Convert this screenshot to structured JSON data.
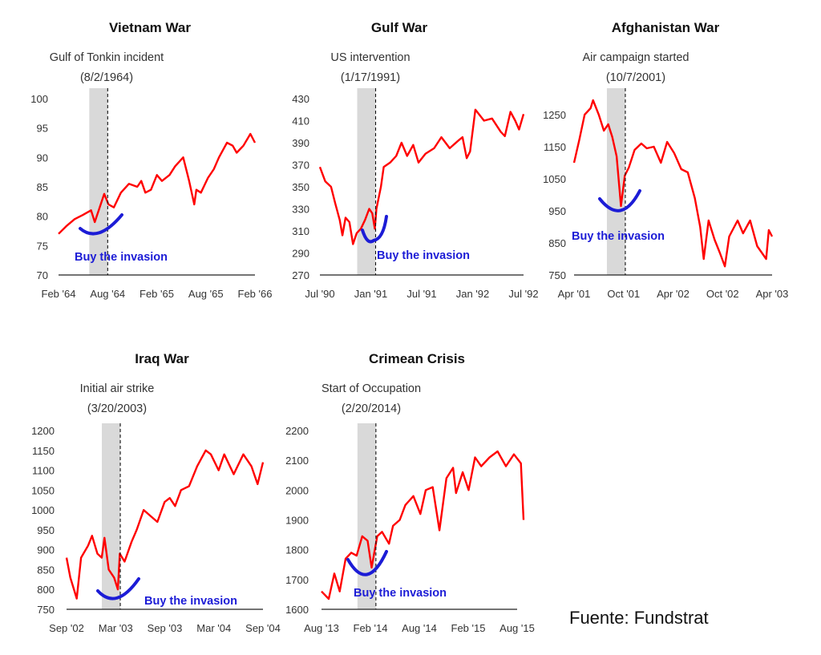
{
  "source": "Fuente: Fundstrat",
  "colors": {
    "series": "#ff0000",
    "highlight": "#1c1cd6",
    "shade": "#d9d9d9"
  },
  "chart_data": [
    {
      "type": "line",
      "title": "Vietnam War",
      "event_label": "Gulf of Tonkin incident",
      "event_date_label": "(8/2/1964)",
      "event_date": "1964-08-02",
      "callout": "Buy the invasion",
      "x_range": [
        "1964-02-01",
        "1966-02-01"
      ],
      "x_ticks": [
        "Feb '64",
        "Aug '64",
        "Feb '65",
        "Aug '65",
        "Feb '66"
      ],
      "y_ticks": [
        70,
        75,
        80,
        85,
        90,
        95,
        100
      ],
      "ylim": [
        70,
        100
      ],
      "series": [
        {
          "points": [
            [
              "1964-02-01",
              77
            ],
            [
              "1964-03-01",
              78.3
            ],
            [
              "1964-04-01",
              79.5
            ],
            [
              "1964-05-01",
              80.2
            ],
            [
              "1964-06-01",
              81
            ],
            [
              "1964-06-15",
              79
            ],
            [
              "1964-07-20",
              83.8
            ],
            [
              "1964-08-05",
              82
            ],
            [
              "1964-08-25",
              81.5
            ],
            [
              "1964-09-20",
              84
            ],
            [
              "1964-10-20",
              85.5
            ],
            [
              "1964-11-20",
              85
            ],
            [
              "1964-12-05",
              86
            ],
            [
              "1964-12-20",
              84
            ],
            [
              "1965-01-10",
              84.5
            ],
            [
              "1965-02-01",
              87
            ],
            [
              "1965-02-20",
              86
            ],
            [
              "1965-03-20",
              87
            ],
            [
              "1965-04-10",
              88.5
            ],
            [
              "1965-05-10",
              90
            ],
            [
              "1965-06-01",
              86
            ],
            [
              "1965-06-20",
              82
            ],
            [
              "1965-06-28",
              84.5
            ],
            [
              "1965-07-15",
              84
            ],
            [
              "1965-08-10",
              86.5
            ],
            [
              "1965-09-01",
              88
            ],
            [
              "1965-09-20",
              90
            ],
            [
              "1965-10-20",
              92.5
            ],
            [
              "1965-11-10",
              92
            ],
            [
              "1965-11-25",
              90.8
            ],
            [
              "1965-12-20",
              92
            ],
            [
              "1966-01-15",
              94
            ],
            [
              "1966-02-01",
              92.5
            ]
          ]
        }
      ]
    },
    {
      "type": "line",
      "title": "Gulf War",
      "event_label": "US intervention",
      "event_date_label": "(1/17/1991)",
      "event_date": "1991-01-17",
      "callout": "Buy the invasion",
      "x_range": [
        "1990-07-01",
        "1992-07-01"
      ],
      "x_ticks": [
        "Jul '90",
        "Jan '91",
        "Jul '91",
        "Jan '92",
        "Jul '92"
      ],
      "y_ticks": [
        270,
        290,
        310,
        330,
        350,
        370,
        390,
        410,
        430
      ],
      "ylim": [
        270,
        430
      ],
      "series": [
        {
          "points": [
            [
              "1990-07-01",
              368
            ],
            [
              "1990-07-20",
              355
            ],
            [
              "1990-08-10",
              350
            ],
            [
              "1990-08-25",
              335
            ],
            [
              "1990-09-10",
              320
            ],
            [
              "1990-09-20",
              306
            ],
            [
              "1990-10-01",
              322
            ],
            [
              "1990-10-15",
              318
            ],
            [
              "1990-10-28",
              298
            ],
            [
              "1990-11-10",
              308
            ],
            [
              "1990-11-25",
              312
            ],
            [
              "1990-12-10",
              320
            ],
            [
              "1990-12-25",
              330
            ],
            [
              "1991-01-05",
              326
            ],
            [
              "1991-01-14",
              312
            ],
            [
              "1991-01-20",
              330
            ],
            [
              "1991-02-05",
              350
            ],
            [
              "1991-02-15",
              368
            ],
            [
              "1991-03-10",
              372
            ],
            [
              "1991-04-01",
              378
            ],
            [
              "1991-04-20",
              390
            ],
            [
              "1991-05-10",
              378
            ],
            [
              "1991-06-01",
              388
            ],
            [
              "1991-06-20",
              372
            ],
            [
              "1991-07-15",
              380
            ],
            [
              "1991-08-15",
              385
            ],
            [
              "1991-09-10",
              395
            ],
            [
              "1991-10-10",
              385
            ],
            [
              "1991-11-10",
              392
            ],
            [
              "1991-11-25",
              395
            ],
            [
              "1991-12-10",
              376
            ],
            [
              "1991-12-22",
              382
            ],
            [
              "1992-01-10",
              420
            ],
            [
              "1992-02-10",
              410
            ],
            [
              "1992-03-10",
              412
            ],
            [
              "1992-04-10",
              400
            ],
            [
              "1992-04-25",
              396
            ],
            [
              "1992-05-15",
              418
            ],
            [
              "1992-06-01",
              410
            ],
            [
              "1992-06-15",
              402
            ],
            [
              "1992-07-01",
              416
            ]
          ]
        }
      ]
    },
    {
      "type": "line",
      "title": "Afghanistan War",
      "event_label": "Air campaign started",
      "event_date_label": "(10/7/2001)",
      "event_date": "2001-10-07",
      "callout": "Buy the invasion",
      "x_range": [
        "2001-04-01",
        "2003-04-01"
      ],
      "x_ticks": [
        "Apr '01",
        "Oct '01",
        "Apr '02",
        "Oct '02",
        "Apr '03"
      ],
      "y_ticks": [
        750,
        850,
        950,
        1050,
        1150,
        1250
      ],
      "ylim": [
        750,
        1300
      ],
      "series": [
        {
          "points": [
            [
              "2001-04-01",
              1100
            ],
            [
              "2001-04-20",
              1170
            ],
            [
              "2001-05-10",
              1250
            ],
            [
              "2001-06-01",
              1270
            ],
            [
              "2001-06-10",
              1295
            ],
            [
              "2001-07-01",
              1250
            ],
            [
              "2001-07-20",
              1200
            ],
            [
              "2001-08-05",
              1220
            ],
            [
              "2001-08-20",
              1180
            ],
            [
              "2001-09-05",
              1120
            ],
            [
              "2001-09-21",
              965
            ],
            [
              "2001-10-05",
              1060
            ],
            [
              "2001-10-20",
              1085
            ],
            [
              "2001-11-10",
              1140
            ],
            [
              "2001-12-05",
              1160
            ],
            [
              "2001-12-25",
              1145
            ],
            [
              "2002-01-20",
              1150
            ],
            [
              "2002-02-15",
              1100
            ],
            [
              "2002-03-10",
              1165
            ],
            [
              "2002-04-05",
              1130
            ],
            [
              "2002-05-01",
              1080
            ],
            [
              "2002-05-25",
              1070
            ],
            [
              "2002-06-20",
              990
            ],
            [
              "2002-07-10",
              900
            ],
            [
              "2002-07-23",
              800
            ],
            [
              "2002-08-10",
              920
            ],
            [
              "2002-09-01",
              860
            ],
            [
              "2002-09-20",
              820
            ],
            [
              "2002-10-09",
              777
            ],
            [
              "2002-10-25",
              870
            ],
            [
              "2002-11-25",
              920
            ],
            [
              "2002-12-15",
              880
            ],
            [
              "2003-01-10",
              920
            ],
            [
              "2003-02-05",
              840
            ],
            [
              "2003-03-10",
              800
            ],
            [
              "2003-03-20",
              890
            ],
            [
              "2003-04-01",
              870
            ]
          ]
        }
      ]
    },
    {
      "type": "line",
      "title": "Iraq War",
      "event_label": "Initial air strike",
      "event_date_label": "(3/20/2003)",
      "event_date": "2003-03-20",
      "callout": "Buy the invasion",
      "x_range": [
        "2002-09-01",
        "2004-09-01"
      ],
      "x_ticks": [
        "Sep '02",
        "Mar '03",
        "Sep '03",
        "Mar '04",
        "Sep '04"
      ],
      "y_ticks": [
        750,
        800,
        850,
        900,
        950,
        1000,
        1050,
        1100,
        1150,
        1200
      ],
      "ylim": [
        750,
        1200
      ],
      "series": [
        {
          "points": [
            [
              "2002-09-01",
              880
            ],
            [
              "2002-09-15",
              830
            ],
            [
              "2002-10-09",
              777
            ],
            [
              "2002-10-25",
              880
            ],
            [
              "2002-11-20",
              910
            ],
            [
              "2002-12-05",
              935
            ],
            [
              "2002-12-25",
              890
            ],
            [
              "2003-01-10",
              880
            ],
            [
              "2003-01-20",
              930
            ],
            [
              "2003-02-05",
              850
            ],
            [
              "2003-02-25",
              830
            ],
            [
              "2003-03-11",
              800
            ],
            [
              "2003-03-18",
              890
            ],
            [
              "2003-04-05",
              870
            ],
            [
              "2003-05-01",
              920
            ],
            [
              "2003-05-20",
              950
            ],
            [
              "2003-06-15",
              1000
            ],
            [
              "2003-07-10",
              985
            ],
            [
              "2003-08-05",
              970
            ],
            [
              "2003-09-01",
              1020
            ],
            [
              "2003-09-20",
              1030
            ],
            [
              "2003-10-10",
              1010
            ],
            [
              "2003-11-01",
              1050
            ],
            [
              "2003-12-01",
              1060
            ],
            [
              "2003-12-31",
              1110
            ],
            [
              "2004-02-01",
              1150
            ],
            [
              "2004-02-20",
              1140
            ],
            [
              "2004-03-20",
              1100
            ],
            [
              "2004-04-10",
              1140
            ],
            [
              "2004-05-15",
              1090
            ],
            [
              "2004-06-20",
              1140
            ],
            [
              "2004-07-20",
              1110
            ],
            [
              "2004-08-12",
              1065
            ],
            [
              "2004-09-01",
              1120
            ]
          ]
        }
      ]
    },
    {
      "type": "line",
      "title": "Crimean Crisis",
      "event_label": "Start of Occupation",
      "event_date_label": "(2/20/2014)",
      "event_date": "2014-02-20",
      "callout": "Buy the invasion",
      "x_range": [
        "2013-08-01",
        "2015-08-01"
      ],
      "x_ticks": [
        "Aug '13",
        "Feb '14",
        "Aug '14",
        "Feb '15",
        "Aug '15"
      ],
      "y_ticks": [
        1600,
        1700,
        1800,
        1900,
        2000,
        2100,
        2200
      ],
      "ylim": [
        1600,
        2200
      ],
      "series": [
        {
          "points": [
            [
              "2013-08-01",
              1660
            ],
            [
              "2013-08-28",
              1635
            ],
            [
              "2013-09-18",
              1720
            ],
            [
              "2013-10-08",
              1660
            ],
            [
              "2013-10-30",
              1770
            ],
            [
              "2013-11-20",
              1790
            ],
            [
              "2013-12-10",
              1780
            ],
            [
              "2013-12-31",
              1845
            ],
            [
              "2014-01-20",
              1830
            ],
            [
              "2014-02-04",
              1740
            ],
            [
              "2014-02-25",
              1845
            ],
            [
              "2014-03-15",
              1860
            ],
            [
              "2014-04-10",
              1820
            ],
            [
              "2014-04-25",
              1880
            ],
            [
              "2014-05-20",
              1900
            ],
            [
              "2014-06-10",
              1950
            ],
            [
              "2014-07-10",
              1980
            ],
            [
              "2014-08-05",
              1920
            ],
            [
              "2014-08-25",
              2000
            ],
            [
              "2014-09-20",
              2010
            ],
            [
              "2014-10-15",
              1865
            ],
            [
              "2014-11-10",
              2040
            ],
            [
              "2014-12-05",
              2075
            ],
            [
              "2014-12-16",
              1990
            ],
            [
              "2015-01-10",
              2060
            ],
            [
              "2015-02-01",
              2000
            ],
            [
              "2015-02-25",
              2110
            ],
            [
              "2015-03-20",
              2080
            ],
            [
              "2015-04-20",
              2110
            ],
            [
              "2015-05-20",
              2130
            ],
            [
              "2015-06-20",
              2080
            ],
            [
              "2015-07-20",
              2120
            ],
            [
              "2015-08-15",
              2090
            ],
            [
              "2015-08-25",
              1900
            ]
          ]
        }
      ]
    }
  ]
}
